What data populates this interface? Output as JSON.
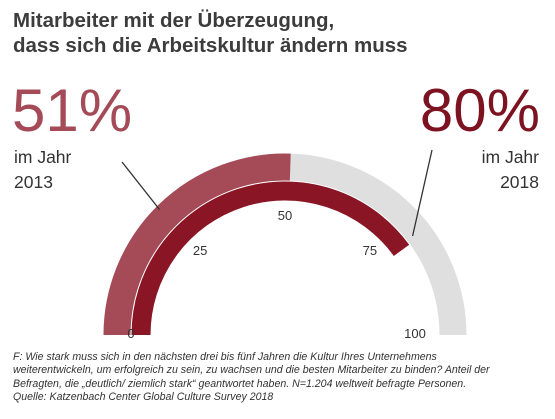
{
  "title": {
    "line1": "Mitarbeiter mit der Überzeugung,",
    "line2": "dass sich die Arbeitskultur ändern muss"
  },
  "chart_data": {
    "type": "gauge",
    "scale_min": 0,
    "scale_max": 100,
    "tick_labels": [
      "0",
      "25",
      "50",
      "75",
      "100"
    ],
    "series": [
      {
        "label_value": "51%",
        "year_label": "im Jahr",
        "year": "2013",
        "value": 51,
        "color": "#a44b57"
      },
      {
        "label_value": "80%",
        "year_label": "im Jahr",
        "year": "2018",
        "value": 80,
        "color": "#8a1524"
      }
    ],
    "track_color": "#e0dfdf"
  },
  "footnote": {
    "line1": "F: Wie stark muss sich in den nächsten drei bis fünf Jahren die Kultur Ihres Unternehmens",
    "line2": "weiterentwickeln, um erfolgreich zu sein, zu wachsen und die besten Mitarbeiter zu binden? Anteil der",
    "line3": "Befragten, die „deutlich/ ziemlich stark“ geantwortet haben. N=1.204 weltweit befragte Personen.",
    "line4": "Quelle: Katzenbach Center Global Culture Survey 2018"
  }
}
